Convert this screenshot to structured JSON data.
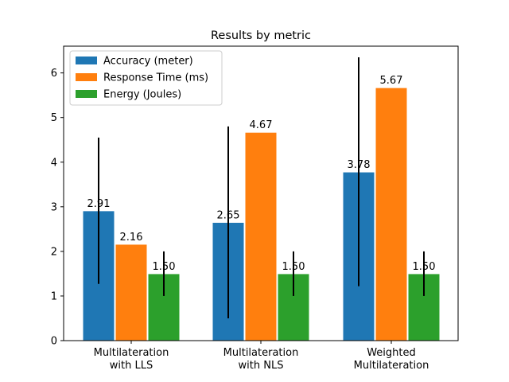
{
  "chart_data": {
    "type": "bar",
    "title": "Results by metric",
    "xlabel": "",
    "ylabel": "",
    "categories": [
      [
        "Multilateration",
        "with LLS"
      ],
      [
        "Multilateration",
        "with NLS"
      ],
      [
        "Weighted",
        "Multilateration"
      ]
    ],
    "series": [
      {
        "name": "Accuracy (meter)",
        "color": "#1f77b4",
        "values": [
          2.91,
          2.65,
          3.78
        ],
        "labels": [
          "2.91",
          "2.65",
          "3.78"
        ],
        "error": [
          [
            1.27,
            4.55
          ],
          [
            0.5,
            4.8
          ],
          [
            1.22,
            6.35
          ]
        ]
      },
      {
        "name": "Response Time (ms)",
        "color": "#ff7f0e",
        "values": [
          2.16,
          4.67,
          5.67
        ],
        "labels": [
          "2.16",
          "4.67",
          "5.67"
        ],
        "error": [
          [
            2.16,
            2.16
          ],
          [
            4.67,
            4.67
          ],
          [
            5.67,
            5.67
          ]
        ]
      },
      {
        "name": "Energy (Joules)",
        "color": "#2ca02c",
        "values": [
          1.5,
          1.5,
          1.5
        ],
        "labels": [
          "1.50",
          "1.50",
          "1.50"
        ],
        "error": [
          [
            1.0,
            2.0
          ],
          [
            1.0,
            2.0
          ],
          [
            1.0,
            2.0
          ]
        ]
      }
    ],
    "ylim": [
      0,
      6.6
    ],
    "yticks": [
      0,
      1,
      2,
      3,
      4,
      5,
      6
    ],
    "grid": false,
    "legend_position": "top-left"
  }
}
